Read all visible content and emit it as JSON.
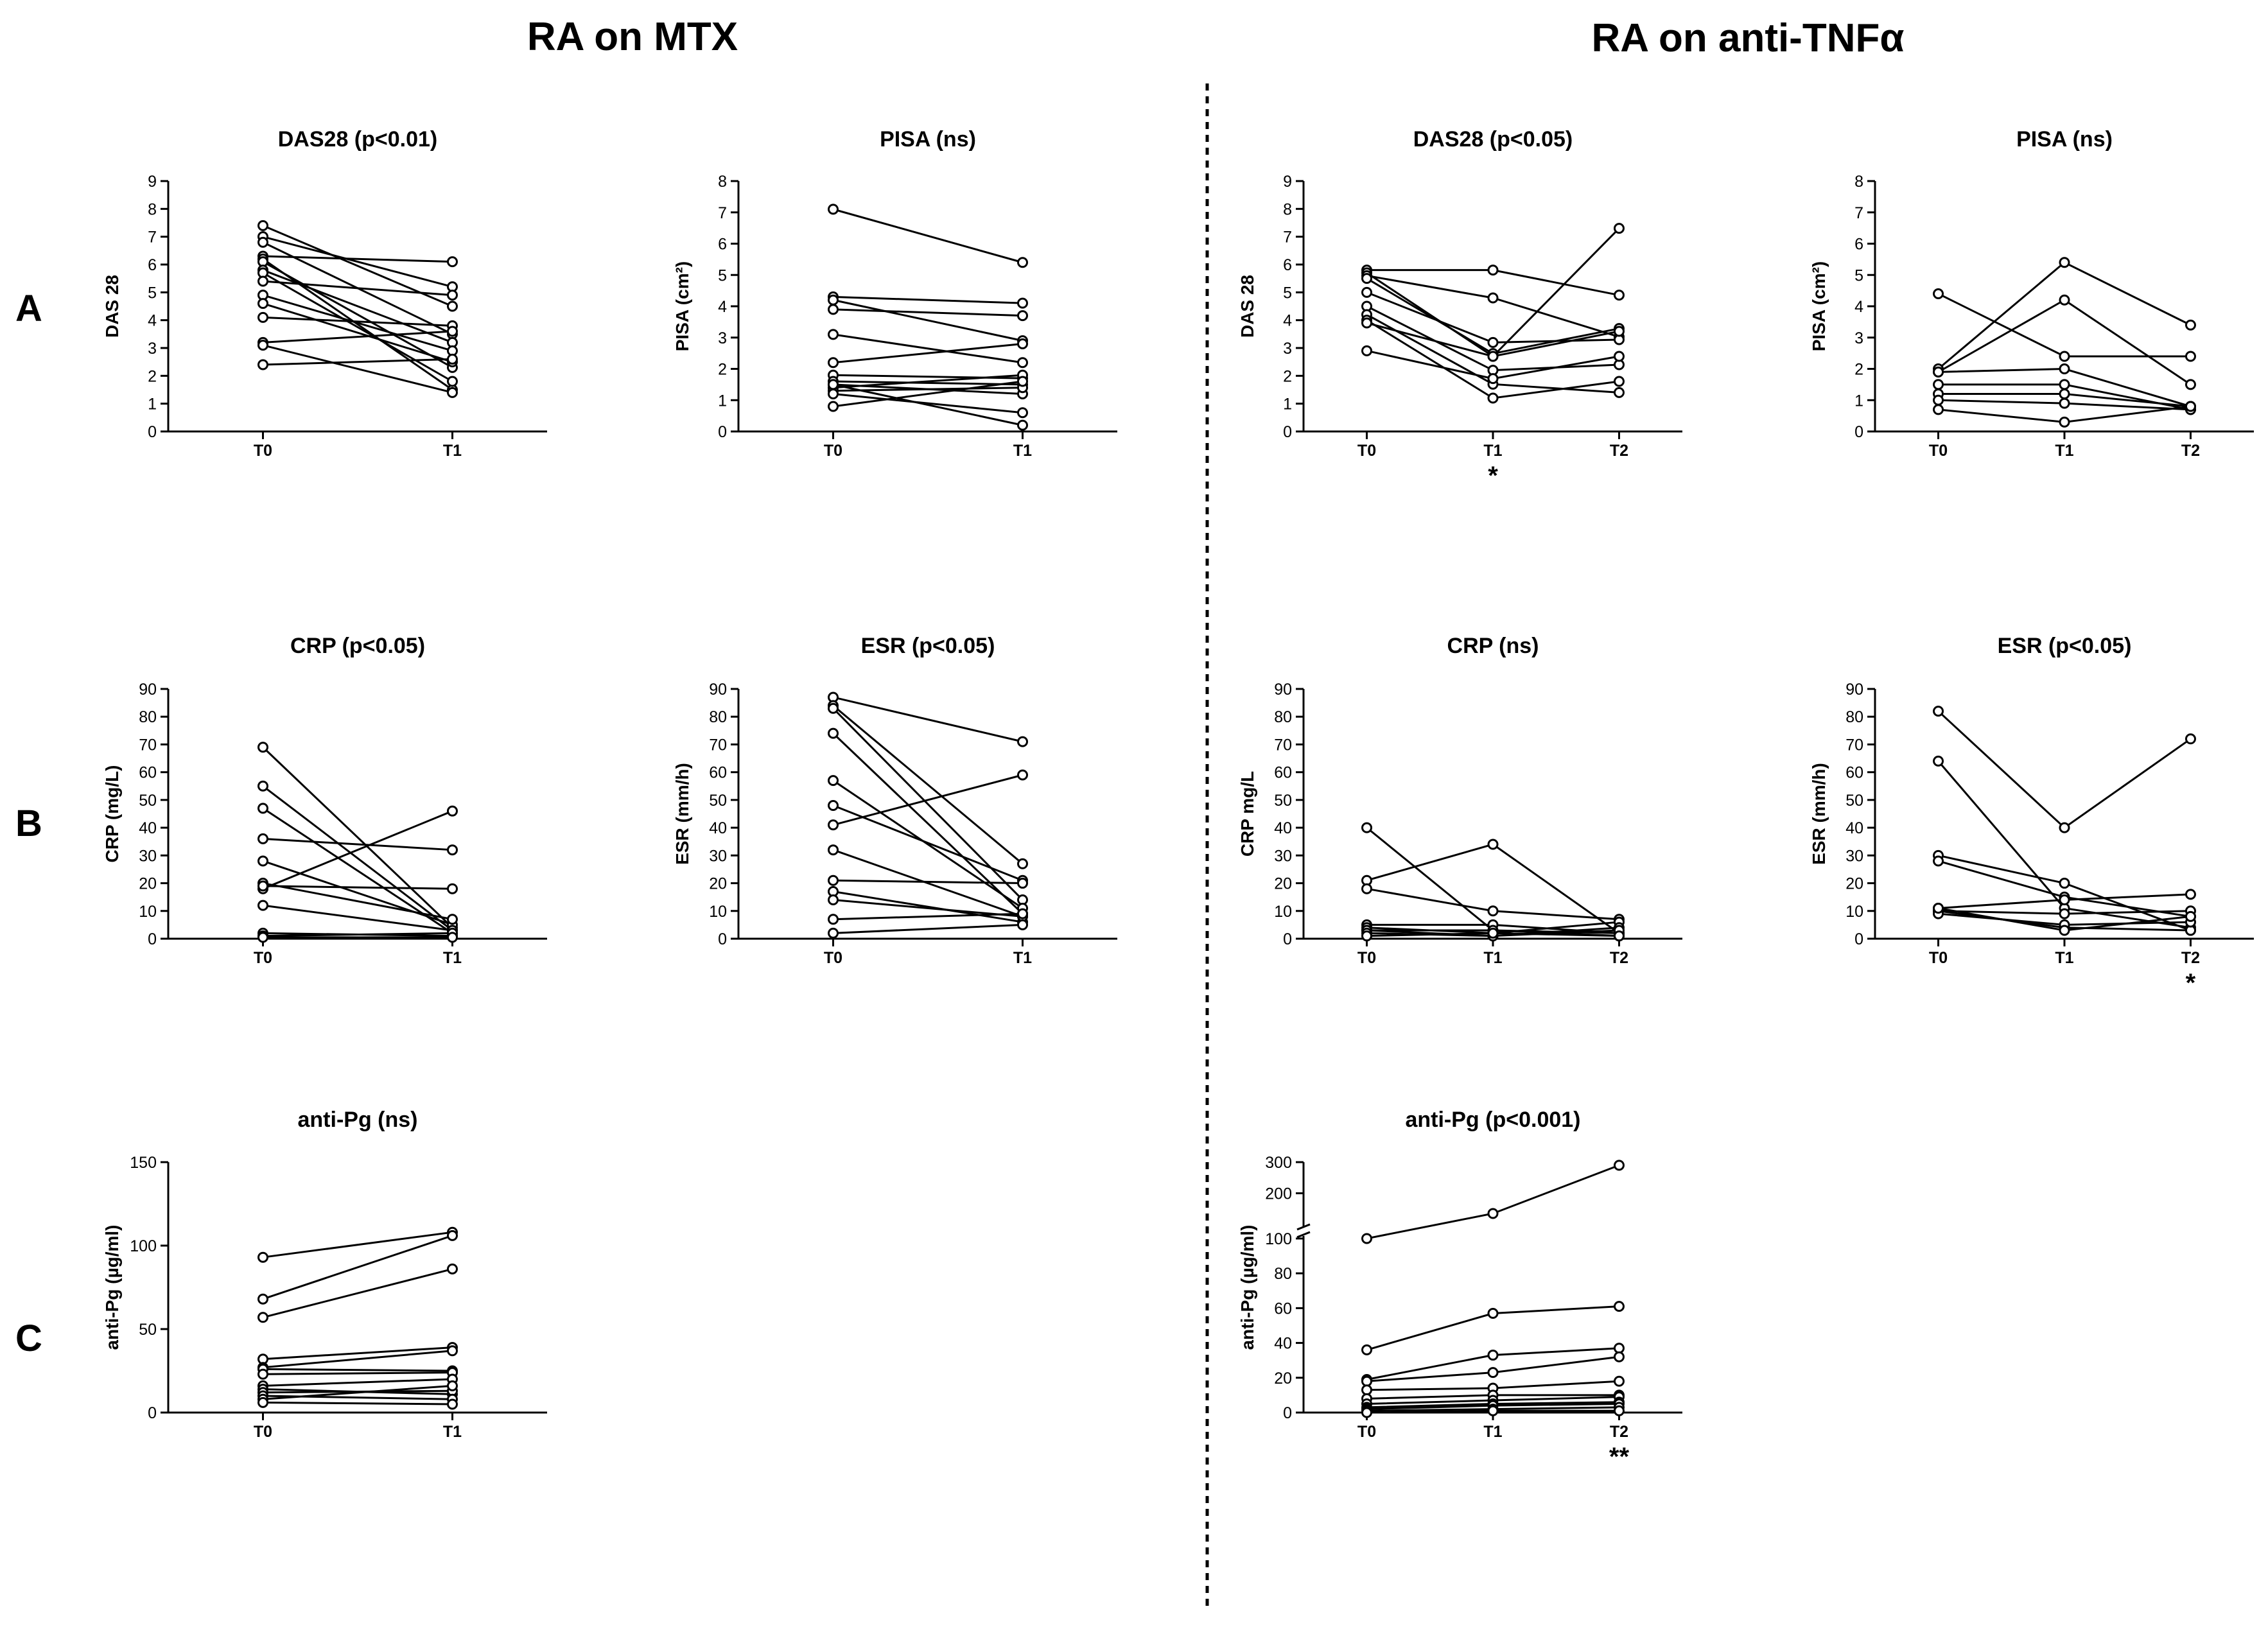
{
  "headers": {
    "left": "RA on MTX",
    "right": "RA on anti-TNFα"
  },
  "row_labels": [
    "A",
    "B",
    "C"
  ],
  "chart_data": [
    {
      "id": "mtx-das28",
      "type": "line",
      "title": "DAS28 (p<0.01)",
      "ylabel": "DAS 28",
      "categories": [
        "T0",
        "T1"
      ],
      "ylim": [
        0,
        9
      ],
      "yticks": [
        0,
        1,
        2,
        3,
        4,
        5,
        6,
        7,
        8,
        9
      ],
      "markers": [],
      "series": [
        [
          7.4,
          4.5
        ],
        [
          7.0,
          5.2
        ],
        [
          6.8,
          3.5
        ],
        [
          6.3,
          6.1
        ],
        [
          6.2,
          1.5
        ],
        [
          6.1,
          2.3
        ],
        [
          5.8,
          3.2
        ],
        [
          5.7,
          1.8
        ],
        [
          5.4,
          4.9
        ],
        [
          4.9,
          2.9
        ],
        [
          4.6,
          2.5
        ],
        [
          4.1,
          3.8
        ],
        [
          3.2,
          3.6
        ],
        [
          3.1,
          1.4
        ],
        [
          2.4,
          2.6
        ]
      ]
    },
    {
      "id": "mtx-pisa",
      "type": "line",
      "title": "PISA (ns)",
      "ylabel": "PISA (cm²)",
      "categories": [
        "T0",
        "T1"
      ],
      "ylim": [
        0,
        8
      ],
      "yticks": [
        0,
        1,
        2,
        3,
        4,
        5,
        6,
        7,
        8
      ],
      "markers": [],
      "series": [
        [
          7.1,
          5.4
        ],
        [
          4.3,
          4.1
        ],
        [
          4.2,
          2.9
        ],
        [
          3.9,
          3.7
        ],
        [
          3.1,
          2.2
        ],
        [
          2.2,
          2.8
        ],
        [
          1.8,
          1.7
        ],
        [
          1.6,
          1.5
        ],
        [
          1.5,
          1.2
        ],
        [
          1.4,
          1.8
        ],
        [
          1.3,
          1.4
        ],
        [
          1.2,
          0.6
        ],
        [
          0.8,
          1.6
        ],
        [
          1.5,
          0.2
        ]
      ]
    },
    {
      "id": "tnf-das28",
      "type": "line",
      "title": "DAS28 (p<0.05)",
      "ylabel": "DAS 28",
      "categories": [
        "T0",
        "T1",
        "T2"
      ],
      "ylim": [
        0,
        9
      ],
      "yticks": [
        0,
        1,
        2,
        3,
        4,
        5,
        6,
        7,
        8,
        9
      ],
      "markers": [
        "",
        "*",
        ""
      ],
      "series": [
        [
          5.8,
          5.8,
          4.9
        ],
        [
          5.7,
          2.7,
          7.3
        ],
        [
          5.6,
          4.8,
          3.4
        ],
        [
          5.5,
          2.8,
          3.7
        ],
        [
          5.0,
          3.2,
          3.3
        ],
        [
          4.5,
          2.2,
          2.4
        ],
        [
          4.2,
          1.7,
          1.4
        ],
        [
          4.0,
          1.2,
          1.8
        ],
        [
          3.9,
          2.7,
          3.6
        ],
        [
          2.9,
          1.9,
          2.7
        ]
      ]
    },
    {
      "id": "tnf-pisa",
      "type": "line",
      "title": "PISA (ns)",
      "ylabel": "PISA (cm²)",
      "categories": [
        "T0",
        "T1",
        "T2"
      ],
      "ylim": [
        0,
        8
      ],
      "yticks": [
        0,
        1,
        2,
        3,
        4,
        5,
        6,
        7,
        8
      ],
      "markers": [],
      "series": [
        [
          4.4,
          2.4,
          2.4
        ],
        [
          2.0,
          5.4,
          3.4
        ],
        [
          1.9,
          4.2,
          1.5
        ],
        [
          1.9,
          2.0,
          0.8
        ],
        [
          1.5,
          1.5,
          0.7
        ],
        [
          1.2,
          1.2,
          0.8
        ],
        [
          1.0,
          0.9,
          0.7
        ],
        [
          0.7,
          0.3,
          0.8
        ]
      ]
    },
    {
      "id": "mtx-crp",
      "type": "line",
      "title": "CRP (p<0.05)",
      "ylabel": "CRP (mg/L)",
      "categories": [
        "T0",
        "T1"
      ],
      "ylim": [
        0,
        90
      ],
      "yticks": [
        0,
        10,
        20,
        30,
        40,
        50,
        60,
        70,
        80,
        90
      ],
      "markers": [],
      "series": [
        [
          69,
          4
        ],
        [
          55,
          3
        ],
        [
          47,
          2
        ],
        [
          36,
          32
        ],
        [
          28,
          5
        ],
        [
          20,
          7
        ],
        [
          18,
          46
        ],
        [
          19,
          18
        ],
        [
          12,
          3
        ],
        [
          2,
          1
        ],
        [
          1,
          2
        ],
        [
          0.5,
          0.5
        ]
      ]
    },
    {
      "id": "mtx-esr",
      "type": "line",
      "title": "ESR (p<0.05)",
      "ylabel": "ESR (mm/h)",
      "categories": [
        "T0",
        "T1"
      ],
      "ylim": [
        0,
        90
      ],
      "yticks": [
        0,
        10,
        20,
        30,
        40,
        50,
        60,
        70,
        80,
        90
      ],
      "markers": [],
      "series": [
        [
          87,
          71
        ],
        [
          84,
          27
        ],
        [
          83,
          14
        ],
        [
          74,
          9
        ],
        [
          57,
          11
        ],
        [
          48,
          21
        ],
        [
          41,
          59
        ],
        [
          32,
          8
        ],
        [
          21,
          20
        ],
        [
          17,
          6
        ],
        [
          14,
          8
        ],
        [
          7,
          9
        ],
        [
          2,
          5
        ]
      ]
    },
    {
      "id": "tnf-crp",
      "type": "line",
      "title": "CRP (ns)",
      "ylabel": "CRP mg/L",
      "categories": [
        "T0",
        "T1",
        "T2"
      ],
      "ylim": [
        0,
        90
      ],
      "yticks": [
        0,
        10,
        20,
        30,
        40,
        50,
        60,
        70,
        80,
        90
      ],
      "markers": [],
      "series": [
        [
          40,
          3,
          2
        ],
        [
          21,
          34,
          2
        ],
        [
          18,
          10,
          7
        ],
        [
          5,
          5,
          2
        ],
        [
          4,
          2,
          6
        ],
        [
          3,
          1,
          4
        ],
        [
          3,
          3,
          1
        ],
        [
          2,
          1,
          3
        ],
        [
          1,
          2,
          1
        ]
      ]
    },
    {
      "id": "tnf-esr",
      "type": "line",
      "title": "ESR (p<0.05)",
      "ylabel": "ESR (mm/h)",
      "categories": [
        "T0",
        "T1",
        "T2"
      ],
      "ylim": [
        0,
        90
      ],
      "yticks": [
        0,
        10,
        20,
        30,
        40,
        50,
        60,
        70,
        80,
        90
      ],
      "markers": [
        "",
        "",
        "*"
      ],
      "series": [
        [
          82,
          40,
          72
        ],
        [
          64,
          11,
          4
        ],
        [
          30,
          20,
          3
        ],
        [
          28,
          15,
          8
        ],
        [
          11,
          14,
          16
        ],
        [
          10,
          9,
          10
        ],
        [
          10,
          4,
          3
        ],
        [
          9,
          5,
          6
        ],
        [
          11,
          3,
          8
        ]
      ]
    },
    {
      "id": "mtx-antipg",
      "type": "line",
      "title": "anti-Pg (ns)",
      "ylabel": "anti-Pg (µg/ml)",
      "categories": [
        "T0",
        "T1"
      ],
      "ylim": [
        0,
        150
      ],
      "yticks": [
        0,
        50,
        100,
        150
      ],
      "markers": [],
      "series": [
        [
          93,
          108
        ],
        [
          68,
          106
        ],
        [
          57,
          86
        ],
        [
          32,
          39
        ],
        [
          27,
          37
        ],
        [
          26,
          25
        ],
        [
          23,
          24
        ],
        [
          16,
          20
        ],
        [
          14,
          11
        ],
        [
          12,
          13
        ],
        [
          10,
          8
        ],
        [
          8,
          16
        ],
        [
          6,
          5
        ]
      ]
    },
    {
      "id": "tnf-antipg",
      "type": "line",
      "title": "anti-Pg (p<0.001)",
      "ylabel": "anti-Pg (µg/ml)",
      "categories": [
        "T0",
        "T1",
        "T2"
      ],
      "ylim": [
        0,
        300
      ],
      "yticks": [
        0,
        20,
        40,
        60,
        80,
        100,
        200,
        300
      ],
      "axis_break": {
        "lower": [
          0,
          100
        ],
        "upper": [
          100,
          300
        ]
      },
      "markers": [
        "",
        "",
        "**"
      ],
      "series": [
        [
          100,
          135,
          290
        ],
        [
          36,
          57,
          61
        ],
        [
          19,
          33,
          37
        ],
        [
          18,
          23,
          32
        ],
        [
          13,
          14,
          18
        ],
        [
          8,
          10,
          10
        ],
        [
          5,
          7,
          9
        ],
        [
          3,
          5,
          6
        ],
        [
          2,
          4,
          5
        ],
        [
          1,
          2,
          3
        ],
        [
          0,
          1,
          1
        ]
      ]
    }
  ]
}
